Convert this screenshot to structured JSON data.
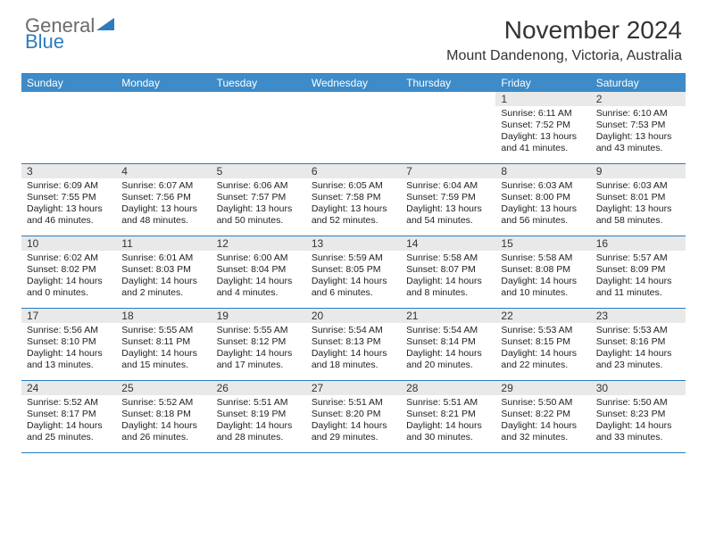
{
  "brand": {
    "word1": "General",
    "word2": "Blue"
  },
  "title": "November 2024",
  "location": "Mount Dandenong, Victoria, Australia",
  "colors": {
    "header_bar": "#3d8bc8",
    "border": "#2a7dc0",
    "daynum_bg": "#e9e9e9",
    "text": "#222222",
    "logo_gray": "#6b6b6b",
    "logo_blue": "#2a7dc0"
  },
  "weekdays": [
    "Sunday",
    "Monday",
    "Tuesday",
    "Wednesday",
    "Thursday",
    "Friday",
    "Saturday"
  ],
  "weeks": [
    [
      null,
      null,
      null,
      null,
      null,
      {
        "n": "1",
        "sr": "6:11 AM",
        "ss": "7:52 PM",
        "dl": "13 hours and 41 minutes."
      },
      {
        "n": "2",
        "sr": "6:10 AM",
        "ss": "7:53 PM",
        "dl": "13 hours and 43 minutes."
      }
    ],
    [
      {
        "n": "3",
        "sr": "6:09 AM",
        "ss": "7:55 PM",
        "dl": "13 hours and 46 minutes."
      },
      {
        "n": "4",
        "sr": "6:07 AM",
        "ss": "7:56 PM",
        "dl": "13 hours and 48 minutes."
      },
      {
        "n": "5",
        "sr": "6:06 AM",
        "ss": "7:57 PM",
        "dl": "13 hours and 50 minutes."
      },
      {
        "n": "6",
        "sr": "6:05 AM",
        "ss": "7:58 PM",
        "dl": "13 hours and 52 minutes."
      },
      {
        "n": "7",
        "sr": "6:04 AM",
        "ss": "7:59 PM",
        "dl": "13 hours and 54 minutes."
      },
      {
        "n": "8",
        "sr": "6:03 AM",
        "ss": "8:00 PM",
        "dl": "13 hours and 56 minutes."
      },
      {
        "n": "9",
        "sr": "6:03 AM",
        "ss": "8:01 PM",
        "dl": "13 hours and 58 minutes."
      }
    ],
    [
      {
        "n": "10",
        "sr": "6:02 AM",
        "ss": "8:02 PM",
        "dl": "14 hours and 0 minutes."
      },
      {
        "n": "11",
        "sr": "6:01 AM",
        "ss": "8:03 PM",
        "dl": "14 hours and 2 minutes."
      },
      {
        "n": "12",
        "sr": "6:00 AM",
        "ss": "8:04 PM",
        "dl": "14 hours and 4 minutes."
      },
      {
        "n": "13",
        "sr": "5:59 AM",
        "ss": "8:05 PM",
        "dl": "14 hours and 6 minutes."
      },
      {
        "n": "14",
        "sr": "5:58 AM",
        "ss": "8:07 PM",
        "dl": "14 hours and 8 minutes."
      },
      {
        "n": "15",
        "sr": "5:58 AM",
        "ss": "8:08 PM",
        "dl": "14 hours and 10 minutes."
      },
      {
        "n": "16",
        "sr": "5:57 AM",
        "ss": "8:09 PM",
        "dl": "14 hours and 11 minutes."
      }
    ],
    [
      {
        "n": "17",
        "sr": "5:56 AM",
        "ss": "8:10 PM",
        "dl": "14 hours and 13 minutes."
      },
      {
        "n": "18",
        "sr": "5:55 AM",
        "ss": "8:11 PM",
        "dl": "14 hours and 15 minutes."
      },
      {
        "n": "19",
        "sr": "5:55 AM",
        "ss": "8:12 PM",
        "dl": "14 hours and 17 minutes."
      },
      {
        "n": "20",
        "sr": "5:54 AM",
        "ss": "8:13 PM",
        "dl": "14 hours and 18 minutes."
      },
      {
        "n": "21",
        "sr": "5:54 AM",
        "ss": "8:14 PM",
        "dl": "14 hours and 20 minutes."
      },
      {
        "n": "22",
        "sr": "5:53 AM",
        "ss": "8:15 PM",
        "dl": "14 hours and 22 minutes."
      },
      {
        "n": "23",
        "sr": "5:53 AM",
        "ss": "8:16 PM",
        "dl": "14 hours and 23 minutes."
      }
    ],
    [
      {
        "n": "24",
        "sr": "5:52 AM",
        "ss": "8:17 PM",
        "dl": "14 hours and 25 minutes."
      },
      {
        "n": "25",
        "sr": "5:52 AM",
        "ss": "8:18 PM",
        "dl": "14 hours and 26 minutes."
      },
      {
        "n": "26",
        "sr": "5:51 AM",
        "ss": "8:19 PM",
        "dl": "14 hours and 28 minutes."
      },
      {
        "n": "27",
        "sr": "5:51 AM",
        "ss": "8:20 PM",
        "dl": "14 hours and 29 minutes."
      },
      {
        "n": "28",
        "sr": "5:51 AM",
        "ss": "8:21 PM",
        "dl": "14 hours and 30 minutes."
      },
      {
        "n": "29",
        "sr": "5:50 AM",
        "ss": "8:22 PM",
        "dl": "14 hours and 32 minutes."
      },
      {
        "n": "30",
        "sr": "5:50 AM",
        "ss": "8:23 PM",
        "dl": "14 hours and 33 minutes."
      }
    ]
  ],
  "labels": {
    "sunrise": "Sunrise:",
    "sunset": "Sunset:",
    "daylight": "Daylight:"
  }
}
